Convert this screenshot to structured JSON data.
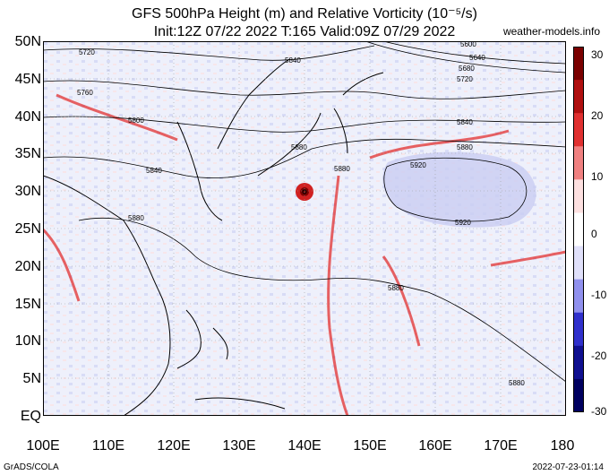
{
  "title_line1": "GFS 500hPa Height (m) and Relative Vorticity (10⁻⁵/s)",
  "title_line2": "Init:12Z 07/22 2022 T:165 Valid:09Z 07/29 2022",
  "site": "weather-models.info",
  "lat_labels": [
    "50N",
    "45N",
    "40N",
    "35N",
    "30N",
    "25N",
    "20N",
    "15N",
    "10N",
    "5N",
    "EQ"
  ],
  "lon_labels": [
    "100E",
    "110E",
    "120E",
    "130E",
    "140E",
    "150E",
    "160E",
    "170E",
    "180"
  ],
  "colorbar": {
    "labels": [
      "30",
      "20",
      "10",
      "0",
      "-10",
      "-20",
      "-30"
    ],
    "colors": [
      "#7a0000",
      "#b01010",
      "#e03030",
      "#f08080",
      "#fde0e0",
      "#ffffff",
      "#e0e0fa",
      "#9090ee",
      "#3030cc",
      "#101090",
      "#000060"
    ]
  },
  "contour_labels": [
    "5720",
    "5760",
    "5800",
    "5840",
    "5880",
    "5920",
    "5640",
    "5680",
    "5600"
  ],
  "footer_left": "GrADS/COLA",
  "footer_right": "2022-07-23-01:14"
}
